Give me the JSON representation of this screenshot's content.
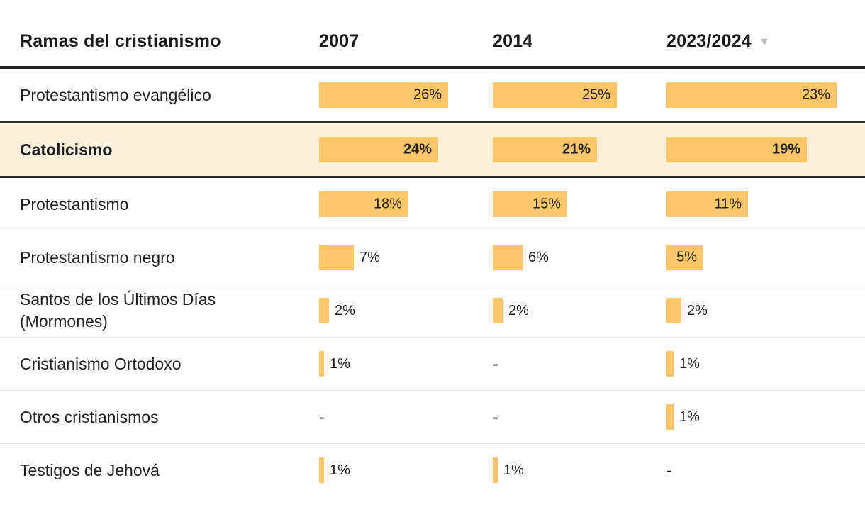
{
  "chart_data": {
    "type": "table",
    "title": "Ramas del cristianismo",
    "columns": [
      "2007",
      "2014",
      "2023/2024"
    ],
    "sorted_column": "2023/2024",
    "sort_direction": "desc",
    "sort_icon": "▼",
    "value_suffix": "%",
    "missing_display": "-",
    "rows": [
      {
        "label": "Protestantismo evangélico",
        "highlighted": false,
        "values": [
          26,
          25,
          23
        ],
        "display": [
          "26%",
          "25%",
          "23%"
        ]
      },
      {
        "label": "Catolicismo",
        "highlighted": true,
        "values": [
          24,
          21,
          19
        ],
        "display": [
          "24%",
          "21%",
          "19%"
        ]
      },
      {
        "label": "Protestantismo",
        "highlighted": false,
        "values": [
          18,
          15,
          11
        ],
        "display": [
          "18%",
          "15%",
          "11%"
        ]
      },
      {
        "label": "Protestantismo negro",
        "highlighted": false,
        "values": [
          7,
          6,
          5
        ],
        "display": [
          "7%",
          "6%",
          "5%"
        ]
      },
      {
        "label": "Santos de los Últimos Días (Mormones)",
        "highlighted": false,
        "values": [
          2,
          2,
          2
        ],
        "display": [
          "2%",
          "2%",
          "2%"
        ]
      },
      {
        "label": "Cristianismo Ortodoxo",
        "highlighted": false,
        "values": [
          1,
          null,
          1
        ],
        "display": [
          "1%",
          "-",
          "1%"
        ]
      },
      {
        "label": "Otros cristianismos",
        "highlighted": false,
        "values": [
          null,
          null,
          1
        ],
        "display": [
          "-",
          "-",
          "1%"
        ]
      },
      {
        "label": "Testigos de Jehová",
        "highlighted": false,
        "values": [
          1,
          1,
          null
        ],
        "display": [
          "1%",
          "1%",
          "-"
        ]
      }
    ],
    "column_axis_max": [
      26,
      25,
      23
    ],
    "legend_position": "none",
    "grid": false
  },
  "colors": {
    "bar": "#fdc768",
    "highlight_row_bg": "#fbf0da",
    "header_rule": "#222222",
    "highlight_rule": "#2b2b2b",
    "divider": "#e8e8e8",
    "text": "#212121",
    "sort_icon": "#bdbdbd"
  }
}
